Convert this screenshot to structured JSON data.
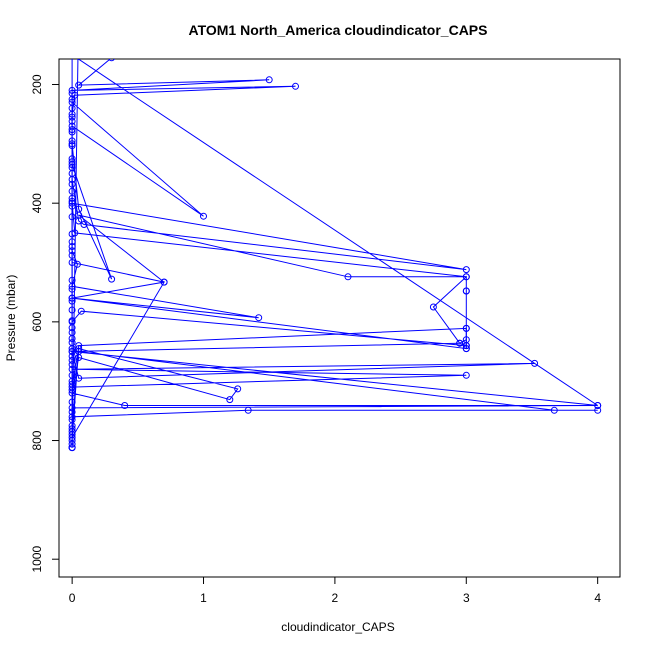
{
  "chart_data": {
    "type": "line",
    "title": "ATOM1 North_America cloudindicator_CAPS",
    "xlabel": "cloudindicator_CAPS",
    "ylabel": "Pressure (mbar)",
    "xlim": [
      -0.1,
      4.17
    ],
    "ylim": [
      1030,
      157
    ],
    "y_inverted": true,
    "x_ticks": [
      "0",
      "1",
      "2",
      "3",
      "4"
    ],
    "y_ticks": [
      "200",
      "400",
      "600",
      "800",
      "1000"
    ],
    "grid": false,
    "legend": "none",
    "series_color": "#0000ff",
    "marker": "open-circle",
    "series": [
      {
        "points": [
          [
            0.3,
            155
          ],
          [
            0.05,
            201
          ],
          [
            1.5,
            192
          ],
          [
            0,
            210
          ],
          [
            1.7,
            203
          ],
          [
            0.02,
            218
          ],
          [
            0,
            250
          ],
          [
            0,
            230
          ],
          [
            1.0,
            422
          ],
          [
            0,
            270
          ],
          [
            0,
            300
          ],
          [
            0.05,
            410
          ],
          [
            0.3,
            528
          ],
          [
            0,
            335
          ],
          [
            0,
            360
          ],
          [
            0.05,
            430
          ],
          [
            0.09,
            436
          ],
          [
            3.0,
            512
          ],
          [
            0,
            400
          ],
          [
            0.02,
            450
          ],
          [
            3.0,
            524
          ],
          [
            2.1,
            524
          ],
          [
            0.05,
            420
          ],
          [
            0.7,
            533
          ],
          [
            0,
            500
          ],
          [
            0,
            480
          ],
          [
            0.04,
            503
          ],
          [
            0,
            540
          ],
          [
            1.42,
            593
          ],
          [
            0,
            560
          ],
          [
            0,
            600
          ],
          [
            0.07,
            582
          ],
          [
            3.0,
            640
          ],
          [
            2.95,
            636
          ],
          [
            0,
            650
          ],
          [
            0.05,
            695
          ],
          [
            3.52,
            670
          ],
          [
            0,
            680
          ],
          [
            3.0,
            690
          ],
          [
            0,
            710
          ],
          [
            0.05,
            645
          ],
          [
            1.26,
            713
          ],
          [
            1.2,
            731
          ],
          [
            0.05,
            660
          ],
          [
            0,
            720
          ],
          [
            0.4,
            741
          ],
          [
            4.0,
            741
          ],
          [
            0,
            745
          ],
          [
            0,
            760
          ],
          [
            1.34,
            749
          ],
          [
            4.0,
            749
          ],
          [
            3.67,
            749
          ],
          [
            0.05,
            650
          ],
          [
            0,
            775
          ],
          [
            0,
            790
          ],
          [
            0,
            812
          ],
          [
            0,
            800
          ],
          [
            0.05,
            640
          ],
          [
            3.0,
            611
          ],
          [
            3.0,
            645
          ],
          [
            0,
            560
          ],
          [
            0.7,
            533
          ],
          [
            0,
            795
          ],
          [
            0,
            650
          ],
          [
            4.0,
            741
          ],
          [
            0,
            150
          ],
          [
            0,
            812
          ],
          [
            0.05,
            70
          ]
        ]
      },
      {
        "points": [
          [
            0,
            215
          ],
          [
            0,
            225
          ],
          [
            0,
            240
          ],
          [
            0,
            255
          ],
          [
            0,
            262
          ],
          [
            0,
            276
          ],
          [
            0,
            280
          ],
          [
            0,
            295
          ],
          [
            0,
            303
          ],
          [
            0,
            325
          ],
          [
            0,
            330
          ],
          [
            0,
            340
          ],
          [
            0,
            350
          ],
          [
            0,
            368
          ],
          [
            0,
            380
          ],
          [
            0,
            392
          ],
          [
            0,
            397
          ],
          [
            0,
            405
          ],
          [
            0,
            423
          ],
          [
            0,
            452
          ],
          [
            0,
            465
          ],
          [
            0,
            473
          ],
          [
            0,
            488
          ],
          [
            0,
            530
          ],
          [
            0,
            545
          ],
          [
            0,
            565
          ],
          [
            0,
            580
          ],
          [
            0,
            598
          ],
          [
            0,
            610
          ],
          [
            0,
            618
          ],
          [
            0,
            628
          ],
          [
            0,
            635
          ],
          [
            0,
            645
          ],
          [
            0,
            658
          ],
          [
            0,
            665
          ],
          [
            0,
            672
          ],
          [
            0,
            690
          ],
          [
            0,
            700
          ],
          [
            0,
            705
          ],
          [
            0,
            715
          ],
          [
            0,
            735
          ],
          [
            0,
            752
          ],
          [
            0,
            765
          ],
          [
            0,
            780
          ],
          [
            0,
            785
          ],
          [
            0,
            806
          ],
          [
            0,
            812
          ]
        ]
      },
      {
        "points": [
          [
            3.0,
            548
          ],
          [
            3.0,
            524
          ],
          [
            2.75,
            575
          ],
          [
            2.95,
            636
          ],
          [
            3.0,
            630
          ],
          [
            3.0,
            640
          ],
          [
            3.0,
            645
          ],
          [
            3.0,
            611
          ],
          [
            3.0,
            548
          ]
        ]
      }
    ]
  }
}
